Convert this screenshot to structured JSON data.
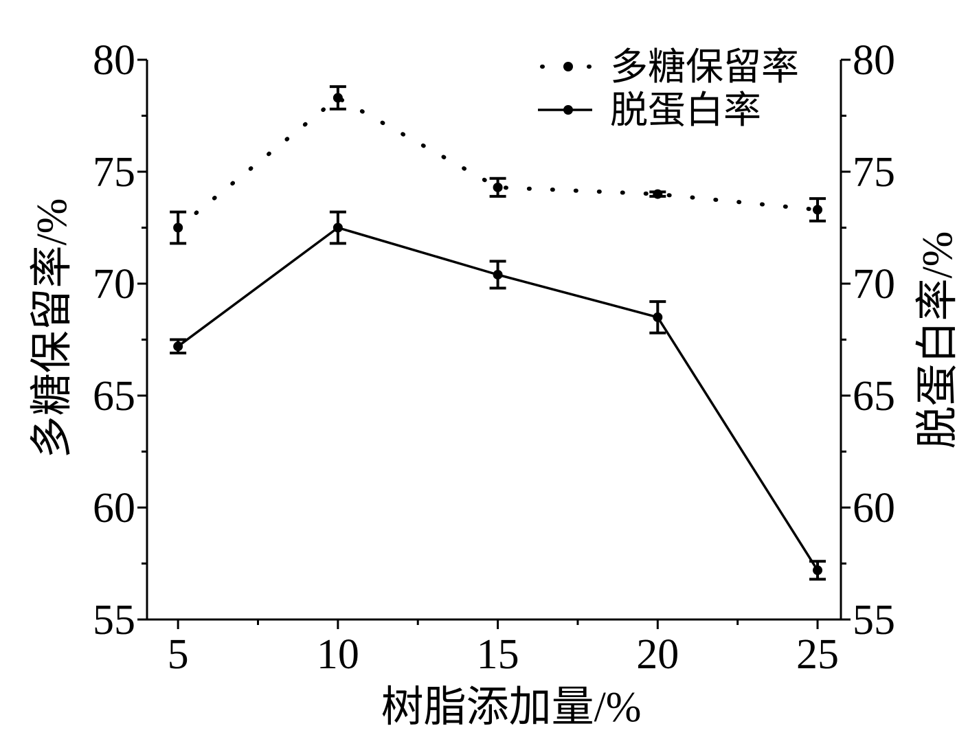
{
  "chart_data": {
    "type": "line",
    "x": [
      5,
      10,
      15,
      20,
      25
    ],
    "x_ticks": [
      5,
      10,
      15,
      20,
      25
    ],
    "y_ticks": [
      55,
      60,
      65,
      70,
      75,
      80
    ],
    "y2_ticks": [
      55,
      60,
      65,
      70,
      75,
      80
    ],
    "xlabel": "树脂添加量/%",
    "ylabel": "多糖保留率/%",
    "y2label": "脱蛋白率/%",
    "xlim": [
      4.03,
      25.73
    ],
    "ylim": [
      55,
      80
    ],
    "y2lim": [
      55,
      80
    ],
    "grid": false,
    "legend": "top-right",
    "series": [
      {
        "name": "多糖保留率",
        "axis": "left",
        "line_style": "dotted",
        "marker": "circle",
        "color": "#000000",
        "values": [
          72.5,
          78.3,
          74.3,
          74.0,
          73.3
        ],
        "errors": [
          0.7,
          0.5,
          0.4,
          0.1,
          0.5
        ]
      },
      {
        "name": "脱蛋白率",
        "axis": "right",
        "line_style": "solid",
        "marker": "circle",
        "color": "#000000",
        "values": [
          67.2,
          72.5,
          70.4,
          68.5,
          57.2
        ],
        "errors": [
          0.3,
          0.7,
          0.6,
          0.7,
          0.4
        ]
      }
    ]
  }
}
